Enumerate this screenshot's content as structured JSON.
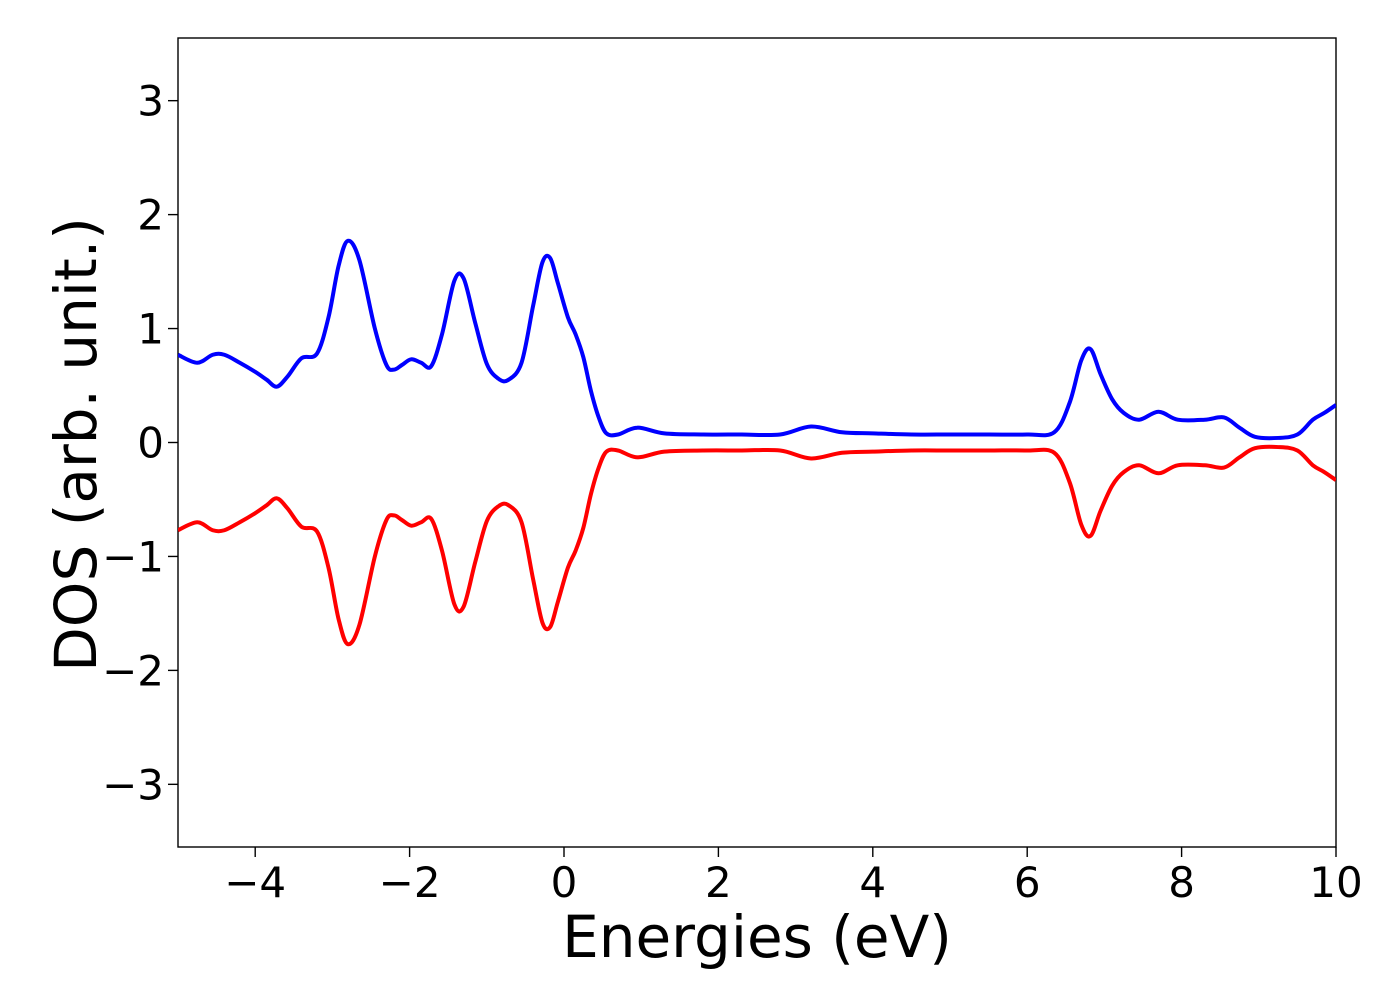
{
  "chart_data": {
    "type": "line",
    "title": "",
    "xlabel": "Energies (eV)",
    "ylabel": "DOS (arb. unit.)",
    "xlim": [
      -5,
      10
    ],
    "ylim": [
      -3.55,
      3.55
    ],
    "xticks": [
      -4,
      -2,
      0,
      2,
      4,
      6,
      8,
      10
    ],
    "xtick_labels": [
      "−4",
      "−2",
      "0",
      "2",
      "4",
      "6",
      "8",
      "10"
    ],
    "yticks": [
      3,
      2,
      1,
      0,
      -1,
      -2,
      -3
    ],
    "ytick_labels": [
      "3",
      "2",
      "1",
      "0",
      "−1",
      "−2",
      "−3"
    ],
    "grid": false,
    "legend": "none",
    "mirrored": true,
    "series": [
      {
        "color": "#0000ff",
        "x": [
          -5.0,
          -4.75,
          -4.55,
          -4.4,
          -4.2,
          -4.0,
          -3.85,
          -3.72,
          -3.58,
          -3.4,
          -3.2,
          -3.05,
          -2.92,
          -2.8,
          -2.65,
          -2.45,
          -2.3,
          -2.2,
          -2.1,
          -1.98,
          -1.85,
          -1.72,
          -1.58,
          -1.42,
          -1.3,
          -1.15,
          -1.0,
          -0.85,
          -0.72,
          -0.55,
          -0.4,
          -0.28,
          -0.18,
          -0.08,
          0.05,
          0.15,
          0.25,
          0.35,
          0.45,
          0.55,
          0.7,
          0.95,
          1.3,
          1.8,
          2.3,
          2.8,
          3.2,
          3.6,
          4.0,
          4.5,
          5.0,
          5.5,
          6.0,
          6.35,
          6.55,
          6.7,
          6.82,
          6.95,
          7.1,
          7.25,
          7.45,
          7.7,
          7.95,
          8.3,
          8.55,
          8.75,
          8.95,
          9.25,
          9.5,
          9.7,
          9.85,
          10.0
        ],
        "values": [
          0.77,
          0.7,
          0.77,
          0.77,
          0.7,
          0.62,
          0.55,
          0.49,
          0.58,
          0.74,
          0.78,
          1.1,
          1.55,
          1.77,
          1.6,
          1.0,
          0.68,
          0.64,
          0.68,
          0.73,
          0.7,
          0.67,
          0.95,
          1.42,
          1.44,
          1.05,
          0.69,
          0.56,
          0.55,
          0.7,
          1.2,
          1.58,
          1.62,
          1.4,
          1.1,
          0.95,
          0.75,
          0.45,
          0.22,
          0.08,
          0.07,
          0.13,
          0.08,
          0.07,
          0.07,
          0.07,
          0.14,
          0.09,
          0.08,
          0.07,
          0.07,
          0.07,
          0.07,
          0.09,
          0.35,
          0.72,
          0.82,
          0.6,
          0.38,
          0.26,
          0.2,
          0.27,
          0.2,
          0.2,
          0.22,
          0.13,
          0.05,
          0.04,
          0.07,
          0.2,
          0.26,
          0.33
        ]
      },
      {
        "color": "#ff0000",
        "x": [
          -5.0,
          -4.75,
          -4.55,
          -4.4,
          -4.2,
          -4.0,
          -3.85,
          -3.72,
          -3.58,
          -3.4,
          -3.2,
          -3.05,
          -2.92,
          -2.8,
          -2.65,
          -2.45,
          -2.3,
          -2.2,
          -2.1,
          -1.98,
          -1.85,
          -1.72,
          -1.58,
          -1.42,
          -1.3,
          -1.15,
          -1.0,
          -0.85,
          -0.72,
          -0.55,
          -0.4,
          -0.28,
          -0.18,
          -0.08,
          0.05,
          0.15,
          0.25,
          0.35,
          0.45,
          0.55,
          0.7,
          0.95,
          1.3,
          1.8,
          2.3,
          2.8,
          3.2,
          3.6,
          4.0,
          4.5,
          5.0,
          5.5,
          6.0,
          6.35,
          6.55,
          6.7,
          6.82,
          6.95,
          7.1,
          7.25,
          7.45,
          7.7,
          7.95,
          8.3,
          8.55,
          8.75,
          8.95,
          9.25,
          9.5,
          9.7,
          9.85,
          10.0
        ],
        "values": [
          -0.77,
          -0.7,
          -0.77,
          -0.77,
          -0.7,
          -0.62,
          -0.55,
          -0.49,
          -0.58,
          -0.74,
          -0.78,
          -1.1,
          -1.55,
          -1.77,
          -1.6,
          -1.0,
          -0.68,
          -0.64,
          -0.68,
          -0.73,
          -0.7,
          -0.67,
          -0.95,
          -1.42,
          -1.44,
          -1.05,
          -0.69,
          -0.56,
          -0.55,
          -0.7,
          -1.2,
          -1.58,
          -1.62,
          -1.4,
          -1.1,
          -0.95,
          -0.75,
          -0.45,
          -0.22,
          -0.08,
          -0.07,
          -0.13,
          -0.08,
          -0.07,
          -0.07,
          -0.07,
          -0.14,
          -0.09,
          -0.08,
          -0.07,
          -0.07,
          -0.07,
          -0.07,
          -0.09,
          -0.35,
          -0.72,
          -0.82,
          -0.6,
          -0.38,
          -0.26,
          -0.2,
          -0.27,
          -0.2,
          -0.2,
          -0.22,
          -0.13,
          -0.05,
          -0.04,
          -0.07,
          -0.2,
          -0.26,
          -0.33
        ]
      }
    ]
  }
}
